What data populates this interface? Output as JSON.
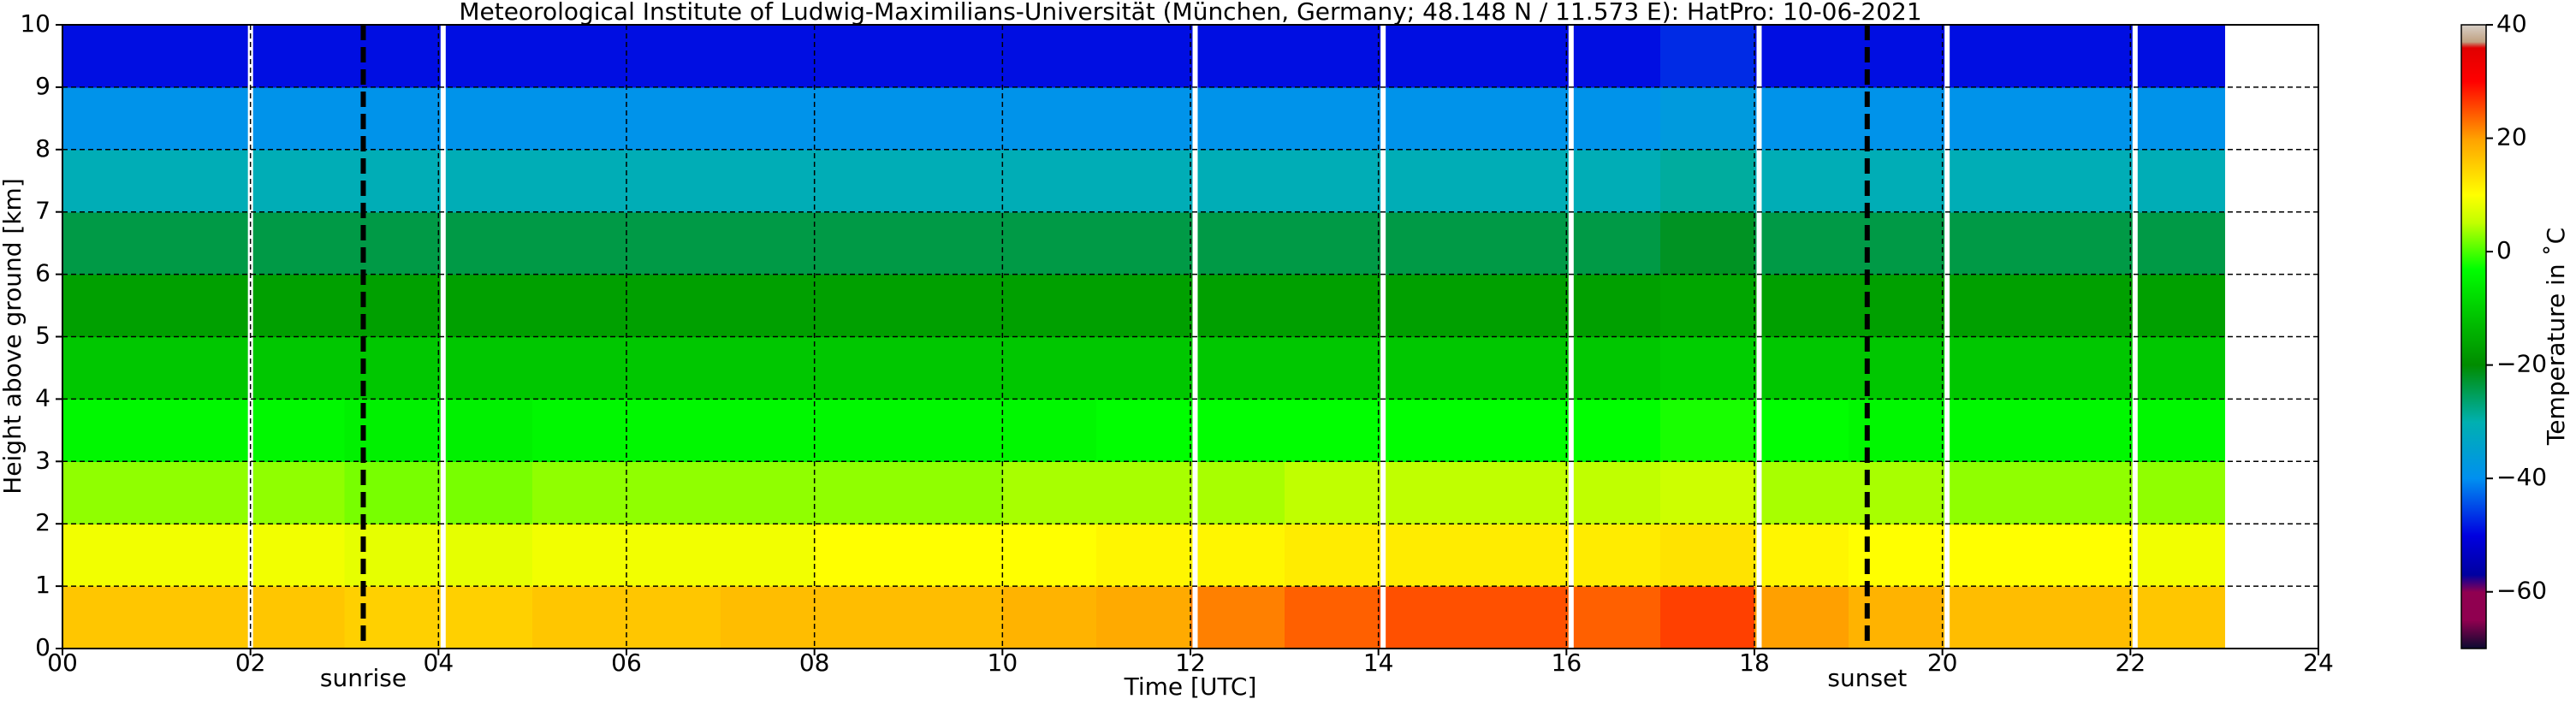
{
  "chart_data": {
    "type": "heatmap",
    "title": "Meteorological Institute of Ludwig-Maximilians-Universität (München, Germany; 48.148 N / 11.573 E):    HatPro: 10-06-2021",
    "x_label": "Time [UTC]",
    "y_label": "Height above ground [km]",
    "colorbar_label": "Temperature in ˚C",
    "xlim": [
      0,
      24
    ],
    "ylim": [
      0,
      10
    ],
    "clim": [
      -70,
      40
    ],
    "xticks": [
      {
        "value": 0,
        "label": "00"
      },
      {
        "value": 2,
        "label": "02"
      },
      {
        "value": 4,
        "label": "04"
      },
      {
        "value": 6,
        "label": "06"
      },
      {
        "value": 8,
        "label": "08"
      },
      10,
      12,
      14,
      16,
      18,
      20,
      22,
      24
    ],
    "yticks": [
      0,
      1,
      2,
      3,
      4,
      5,
      6,
      7,
      8,
      9,
      10
    ],
    "cticks": [
      {
        "value": -60,
        "label": "−60"
      },
      {
        "value": -40,
        "label": "−40"
      },
      {
        "value": -20,
        "label": "−20"
      },
      0,
      20,
      40
    ],
    "grid": true,
    "x_edges": [
      0,
      1,
      2,
      3,
      4,
      5,
      6,
      7,
      8,
      9,
      10,
      11,
      12,
      13,
      14,
      15,
      16,
      17,
      18,
      19,
      20,
      21,
      22,
      23
    ],
    "y_edges": [
      0,
      1,
      2,
      3,
      4,
      5,
      6,
      7,
      8,
      9,
      10
    ],
    "values": [
      [
        16,
        16,
        16,
        15,
        15,
        16,
        16,
        17,
        17,
        17,
        18,
        19,
        22,
        24,
        25,
        25,
        24,
        26,
        20,
        18,
        17,
        17,
        16
      ],
      [
        9,
        9,
        9,
        8,
        8,
        9,
        9,
        9,
        10,
        10,
        10,
        11,
        11,
        12,
        12,
        12,
        12,
        13,
        11,
        10,
        10,
        10,
        9
      ],
      [
        3,
        3,
        3,
        2,
        2,
        3,
        3,
        3,
        3,
        3,
        4,
        4,
        4,
        5,
        5,
        5,
        5,
        6,
        4,
        4,
        3,
        3,
        3
      ],
      [
        -4,
        -4,
        -4,
        -5,
        -5,
        -4,
        -4,
        -4,
        -4,
        -4,
        -4,
        -3,
        -3,
        -3,
        -3,
        -3,
        -3,
        -2,
        -3,
        -4,
        -4,
        -4,
        -4
      ],
      [
        -11,
        -11,
        -11,
        -11,
        -11,
        -11,
        -11,
        -11,
        -11,
        -11,
        -11,
        -11,
        -11,
        -11,
        -11,
        -11,
        -11,
        -10,
        -11,
        -11,
        -11,
        -11,
        -11
      ],
      [
        -17,
        -17,
        -17,
        -17,
        -17,
        -17,
        -17,
        -17,
        -17,
        -17,
        -17,
        -17,
        -17,
        -17,
        -17,
        -17,
        -17,
        -16,
        -17,
        -17,
        -17,
        -17,
        -17
      ],
      [
        -24,
        -24,
        -24,
        -24,
        -24,
        -24,
        -24,
        -24,
        -24,
        -24,
        -24,
        -24,
        -24,
        -24,
        -24,
        -24,
        -24,
        -22,
        -24,
        -24,
        -24,
        -24,
        -24
      ],
      [
        -31,
        -31,
        -31,
        -31,
        -31,
        -31,
        -31,
        -31,
        -31,
        -31,
        -31,
        -31,
        -31,
        -31,
        -31,
        -31,
        -31,
        -29,
        -31,
        -31,
        -31,
        -31,
        -31
      ],
      [
        -39,
        -39,
        -39,
        -39,
        -39,
        -39,
        -39,
        -39,
        -39,
        -39,
        -39,
        -39,
        -39,
        -39,
        -39,
        -39,
        -39,
        -37,
        -39,
        -39,
        -39,
        -39,
        -39
      ],
      [
        -49,
        -49,
        -49,
        -49,
        -49,
        -49,
        -49,
        -49,
        -49,
        -49,
        -49,
        -49,
        -49,
        -49,
        -49,
        -49,
        -49,
        -47,
        -49,
        -49,
        -49,
        -49,
        -49
      ]
    ],
    "colorscale": [
      [
        -70,
        "#0a0a30"
      ],
      [
        -65,
        "#900050"
      ],
      [
        -60,
        "#900050"
      ],
      [
        -57,
        "#0000a0"
      ],
      [
        -50,
        "#0000e0"
      ],
      [
        -40,
        "#0090f0"
      ],
      [
        -30,
        "#00b0b0"
      ],
      [
        -20,
        "#008c00"
      ],
      [
        -12,
        "#00c000"
      ],
      [
        -3,
        "#00ff00"
      ],
      [
        5,
        "#c0ff00"
      ],
      [
        10,
        "#ffff00"
      ],
      [
        20,
        "#ffa000"
      ],
      [
        30,
        "#ff0000"
      ],
      [
        36,
        "#e00000"
      ],
      [
        37,
        "#c0a080"
      ],
      [
        40,
        "#d8d0c8"
      ]
    ],
    "gaps": [
      2.0,
      4.05,
      12.05,
      14.05,
      16.05,
      18.05,
      20.05,
      22.05
    ],
    "annotations": [
      {
        "x": 3.2,
        "label": "sunrise"
      },
      {
        "x": 19.2,
        "label": "sunset"
      }
    ]
  }
}
